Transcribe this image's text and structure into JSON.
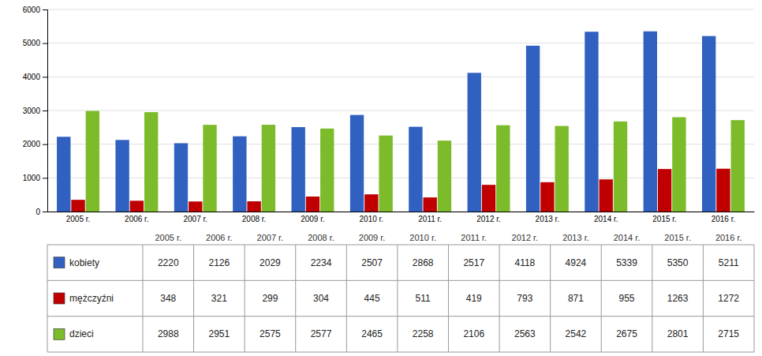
{
  "chart_data": {
    "type": "bar",
    "categories": [
      "2005 r.",
      "2006 r.",
      "2007 r.",
      "2008 r.",
      "2009 r.",
      "2010 r.",
      "2011 r.",
      "2012 r.",
      "2013 r.",
      "2014 r.",
      "2015 r.",
      "2016 r."
    ],
    "series": [
      {
        "name": "kobiety",
        "color": "#3060C0",
        "values": [
          2220,
          2126,
          2029,
          2234,
          2507,
          2868,
          2517,
          4118,
          4924,
          5339,
          5350,
          5211
        ]
      },
      {
        "name": "mężczyźni",
        "color": "#C00000",
        "values": [
          348,
          321,
          299,
          304,
          445,
          511,
          419,
          793,
          871,
          955,
          1263,
          1272
        ]
      },
      {
        "name": "dzieci",
        "color": "#7CBB2A",
        "values": [
          2988,
          2951,
          2575,
          2577,
          2465,
          2258,
          2106,
          2563,
          2542,
          2675,
          2801,
          2715
        ]
      }
    ],
    "ylim": [
      0,
      6000
    ],
    "yticks": [
      0,
      1000,
      2000,
      3000,
      4000,
      5000,
      6000
    ],
    "grid": true,
    "legend": "bottom",
    "data_labels": true
  }
}
